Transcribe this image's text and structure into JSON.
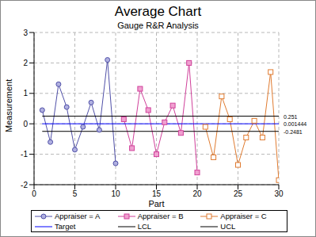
{
  "chart_data": {
    "type": "line",
    "title": "Average Chart",
    "subtitle": "Gauge R&R Analysis",
    "x_label": "Part",
    "y_label": "Measurement",
    "xlim": [
      0,
      30
    ],
    "xticks": [
      0,
      5,
      10,
      15,
      20,
      25,
      30
    ],
    "ylim": [
      -2,
      3
    ],
    "yticks": [
      -2,
      -1,
      0,
      1,
      2,
      3
    ],
    "grid": true,
    "legend": "bottom",
    "series": [
      {
        "name": "Appraiser = A",
        "color": "#5050a8",
        "marker": "circle",
        "x": [
          1,
          2,
          3,
          4,
          5,
          6,
          7,
          8,
          9,
          10
        ],
        "values": [
          0.45,
          -0.6,
          1.3,
          0.55,
          -0.85,
          -0.1,
          0.7,
          -0.2,
          2.1,
          -1.3
        ]
      },
      {
        "name": "Appraiser = B",
        "color": "#d0409a",
        "marker": "square",
        "x": [
          11,
          12,
          13,
          14,
          15,
          16,
          17,
          18,
          19,
          20
        ],
        "values": [
          0.15,
          -0.8,
          1.15,
          0.45,
          -1.0,
          0.05,
          0.6,
          -0.3,
          2.0,
          -1.6
        ]
      },
      {
        "name": "Appraiser = C",
        "color": "#e07b30",
        "marker": "open_square",
        "x": [
          21,
          22,
          23,
          24,
          25,
          26,
          27,
          28,
          29,
          30
        ],
        "values": [
          -0.1,
          -1.1,
          0.9,
          0.15,
          -1.35,
          -0.45,
          0.1,
          -0.45,
          1.7,
          -1.85
        ]
      },
      {
        "name": "Target",
        "type": "hline",
        "color": "#0000ff",
        "data_labels": true,
        "x": [
          1,
          30
        ],
        "values": [
          0.001444,
          0.001444
        ]
      },
      {
        "name": "LCL",
        "type": "hline",
        "color": "#000000",
        "data_labels": true,
        "x": [
          1,
          30
        ],
        "values": [
          -0.2481,
          -0.2481
        ]
      },
      {
        "name": "UCL",
        "type": "hline",
        "color": "#000000",
        "data_labels": true,
        "x": [
          1,
          30
        ],
        "values": [
          0.251,
          0.251
        ]
      }
    ]
  }
}
